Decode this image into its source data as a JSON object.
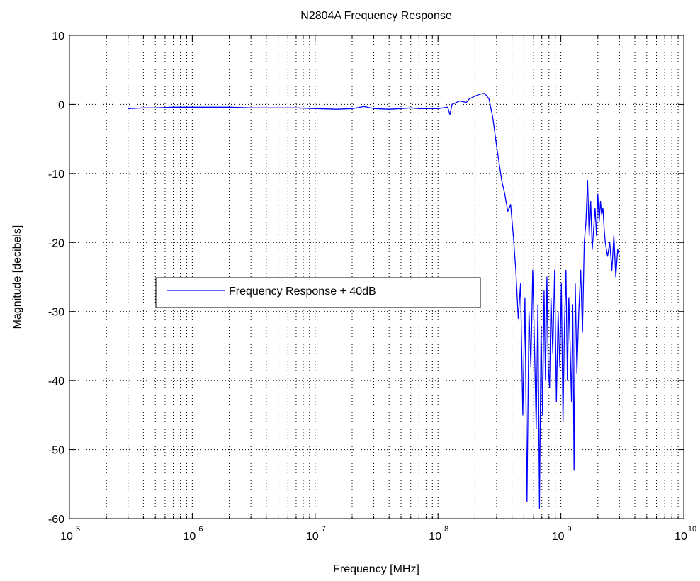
{
  "chart_data": {
    "type": "line",
    "title": "N2804A Frequency Response",
    "xlabel": "Frequency [MHz]",
    "ylabel": "Magnitude [decibels]",
    "x_scale": "log",
    "xlim": [
      100000,
      10000000000
    ],
    "ylim": [
      -60,
      10
    ],
    "grid": true,
    "legend_position": "left-middle",
    "x_ticks": [
      {
        "base": "10",
        "exp": "5",
        "value": 100000
      },
      {
        "base": "10",
        "exp": "6",
        "value": 1000000
      },
      {
        "base": "10",
        "exp": "7",
        "value": 10000000
      },
      {
        "base": "10",
        "exp": "8",
        "value": 100000000
      },
      {
        "base": "10",
        "exp": "9",
        "value": 1000000000
      },
      {
        "base": "10",
        "exp": "10",
        "value": 10000000000
      }
    ],
    "y_ticks": [
      "10",
      "0",
      "-10",
      "-20",
      "-30",
      "-40",
      "-50",
      "-60"
    ],
    "series": [
      {
        "name": "Frequency Response + 40dB",
        "color": "#0000ff",
        "points": [
          [
            300000,
            -0.6
          ],
          [
            400000,
            -0.5
          ],
          [
            500000,
            -0.5
          ],
          [
            700000,
            -0.4
          ],
          [
            1000000,
            -0.4
          ],
          [
            1500000,
            -0.4
          ],
          [
            2000000,
            -0.4
          ],
          [
            3000000,
            -0.5
          ],
          [
            5000000,
            -0.5
          ],
          [
            7000000,
            -0.5
          ],
          [
            10000000,
            -0.6
          ],
          [
            15000000,
            -0.7
          ],
          [
            20000000,
            -0.6
          ],
          [
            25000000,
            -0.3
          ],
          [
            30000000,
            -0.6
          ],
          [
            40000000,
            -0.7
          ],
          [
            50000000,
            -0.6
          ],
          [
            60000000,
            -0.5
          ],
          [
            70000000,
            -0.6
          ],
          [
            80000000,
            -0.6
          ],
          [
            100000000,
            -0.6
          ],
          [
            120000000,
            -0.4
          ],
          [
            125000000,
            -1.5
          ],
          [
            130000000,
            0.0
          ],
          [
            150000000,
            0.5
          ],
          [
            170000000,
            0.3
          ],
          [
            180000000,
            0.8
          ],
          [
            200000000,
            1.2
          ],
          [
            220000000,
            1.5
          ],
          [
            240000000,
            1.6
          ],
          [
            260000000,
            0.8
          ],
          [
            280000000,
            -2.0
          ],
          [
            300000000,
            -6.0
          ],
          [
            330000000,
            -11.0
          ],
          [
            350000000,
            -13.0
          ],
          [
            370000000,
            -15.5
          ],
          [
            390000000,
            -14.5
          ],
          [
            410000000,
            -19.0
          ],
          [
            430000000,
            -24.0
          ],
          [
            450000000,
            -31.0
          ],
          [
            470000000,
            -26.0
          ],
          [
            490000000,
            -45.0
          ],
          [
            510000000,
            -28.0
          ],
          [
            530000000,
            -57.5
          ],
          [
            550000000,
            -30.0
          ],
          [
            570000000,
            -38.0
          ],
          [
            590000000,
            -24.0
          ],
          [
            610000000,
            -35.0
          ],
          [
            630000000,
            -47.0
          ],
          [
            650000000,
            -29.0
          ],
          [
            670000000,
            -58.5
          ],
          [
            690000000,
            -32.0
          ],
          [
            710000000,
            -45.0
          ],
          [
            730000000,
            -27.0
          ],
          [
            750000000,
            -40.0
          ],
          [
            770000000,
            -25.0
          ],
          [
            790000000,
            -38.0
          ],
          [
            810000000,
            -41.0
          ],
          [
            830000000,
            -28.0
          ],
          [
            860000000,
            -36.0
          ],
          [
            890000000,
            -24.0
          ],
          [
            920000000,
            -43.0
          ],
          [
            950000000,
            -30.0
          ],
          [
            980000000,
            -38.0
          ],
          [
            1010000000,
            -26.0
          ],
          [
            1040000000,
            -46.0
          ],
          [
            1070000000,
            -32.0
          ],
          [
            1100000000,
            -24.0
          ],
          [
            1130000000,
            -40.0
          ],
          [
            1160000000,
            -28.0
          ],
          [
            1190000000,
            -35.0
          ],
          [
            1220000000,
            -43.0
          ],
          [
            1250000000,
            -29.0
          ],
          [
            1280000000,
            -53.0
          ],
          [
            1310000000,
            -26.0
          ],
          [
            1350000000,
            -39.0
          ],
          [
            1400000000,
            -30.0
          ],
          [
            1450000000,
            -24.0
          ],
          [
            1500000000,
            -33.0
          ],
          [
            1550000000,
            -20.0
          ],
          [
            1600000000,
            -17.0
          ],
          [
            1650000000,
            -11.0
          ],
          [
            1700000000,
            -19.0
          ],
          [
            1750000000,
            -14.0
          ],
          [
            1800000000,
            -21.0
          ],
          [
            1850000000,
            -18.0
          ],
          [
            1900000000,
            -15.0
          ],
          [
            1950000000,
            -19.0
          ],
          [
            2000000000,
            -13.0
          ],
          [
            2050000000,
            -17.0
          ],
          [
            2100000000,
            -14.0
          ],
          [
            2150000000,
            -16.0
          ],
          [
            2200000000,
            -15.0
          ],
          [
            2250000000,
            -18.0
          ],
          [
            2300000000,
            -20.0
          ],
          [
            2400000000,
            -22.0
          ],
          [
            2500000000,
            -20.0
          ],
          [
            2600000000,
            -24.0
          ],
          [
            2700000000,
            -19.0
          ],
          [
            2800000000,
            -25.0
          ],
          [
            2900000000,
            -21.0
          ],
          [
            3000000000,
            -22.0
          ]
        ]
      }
    ]
  }
}
